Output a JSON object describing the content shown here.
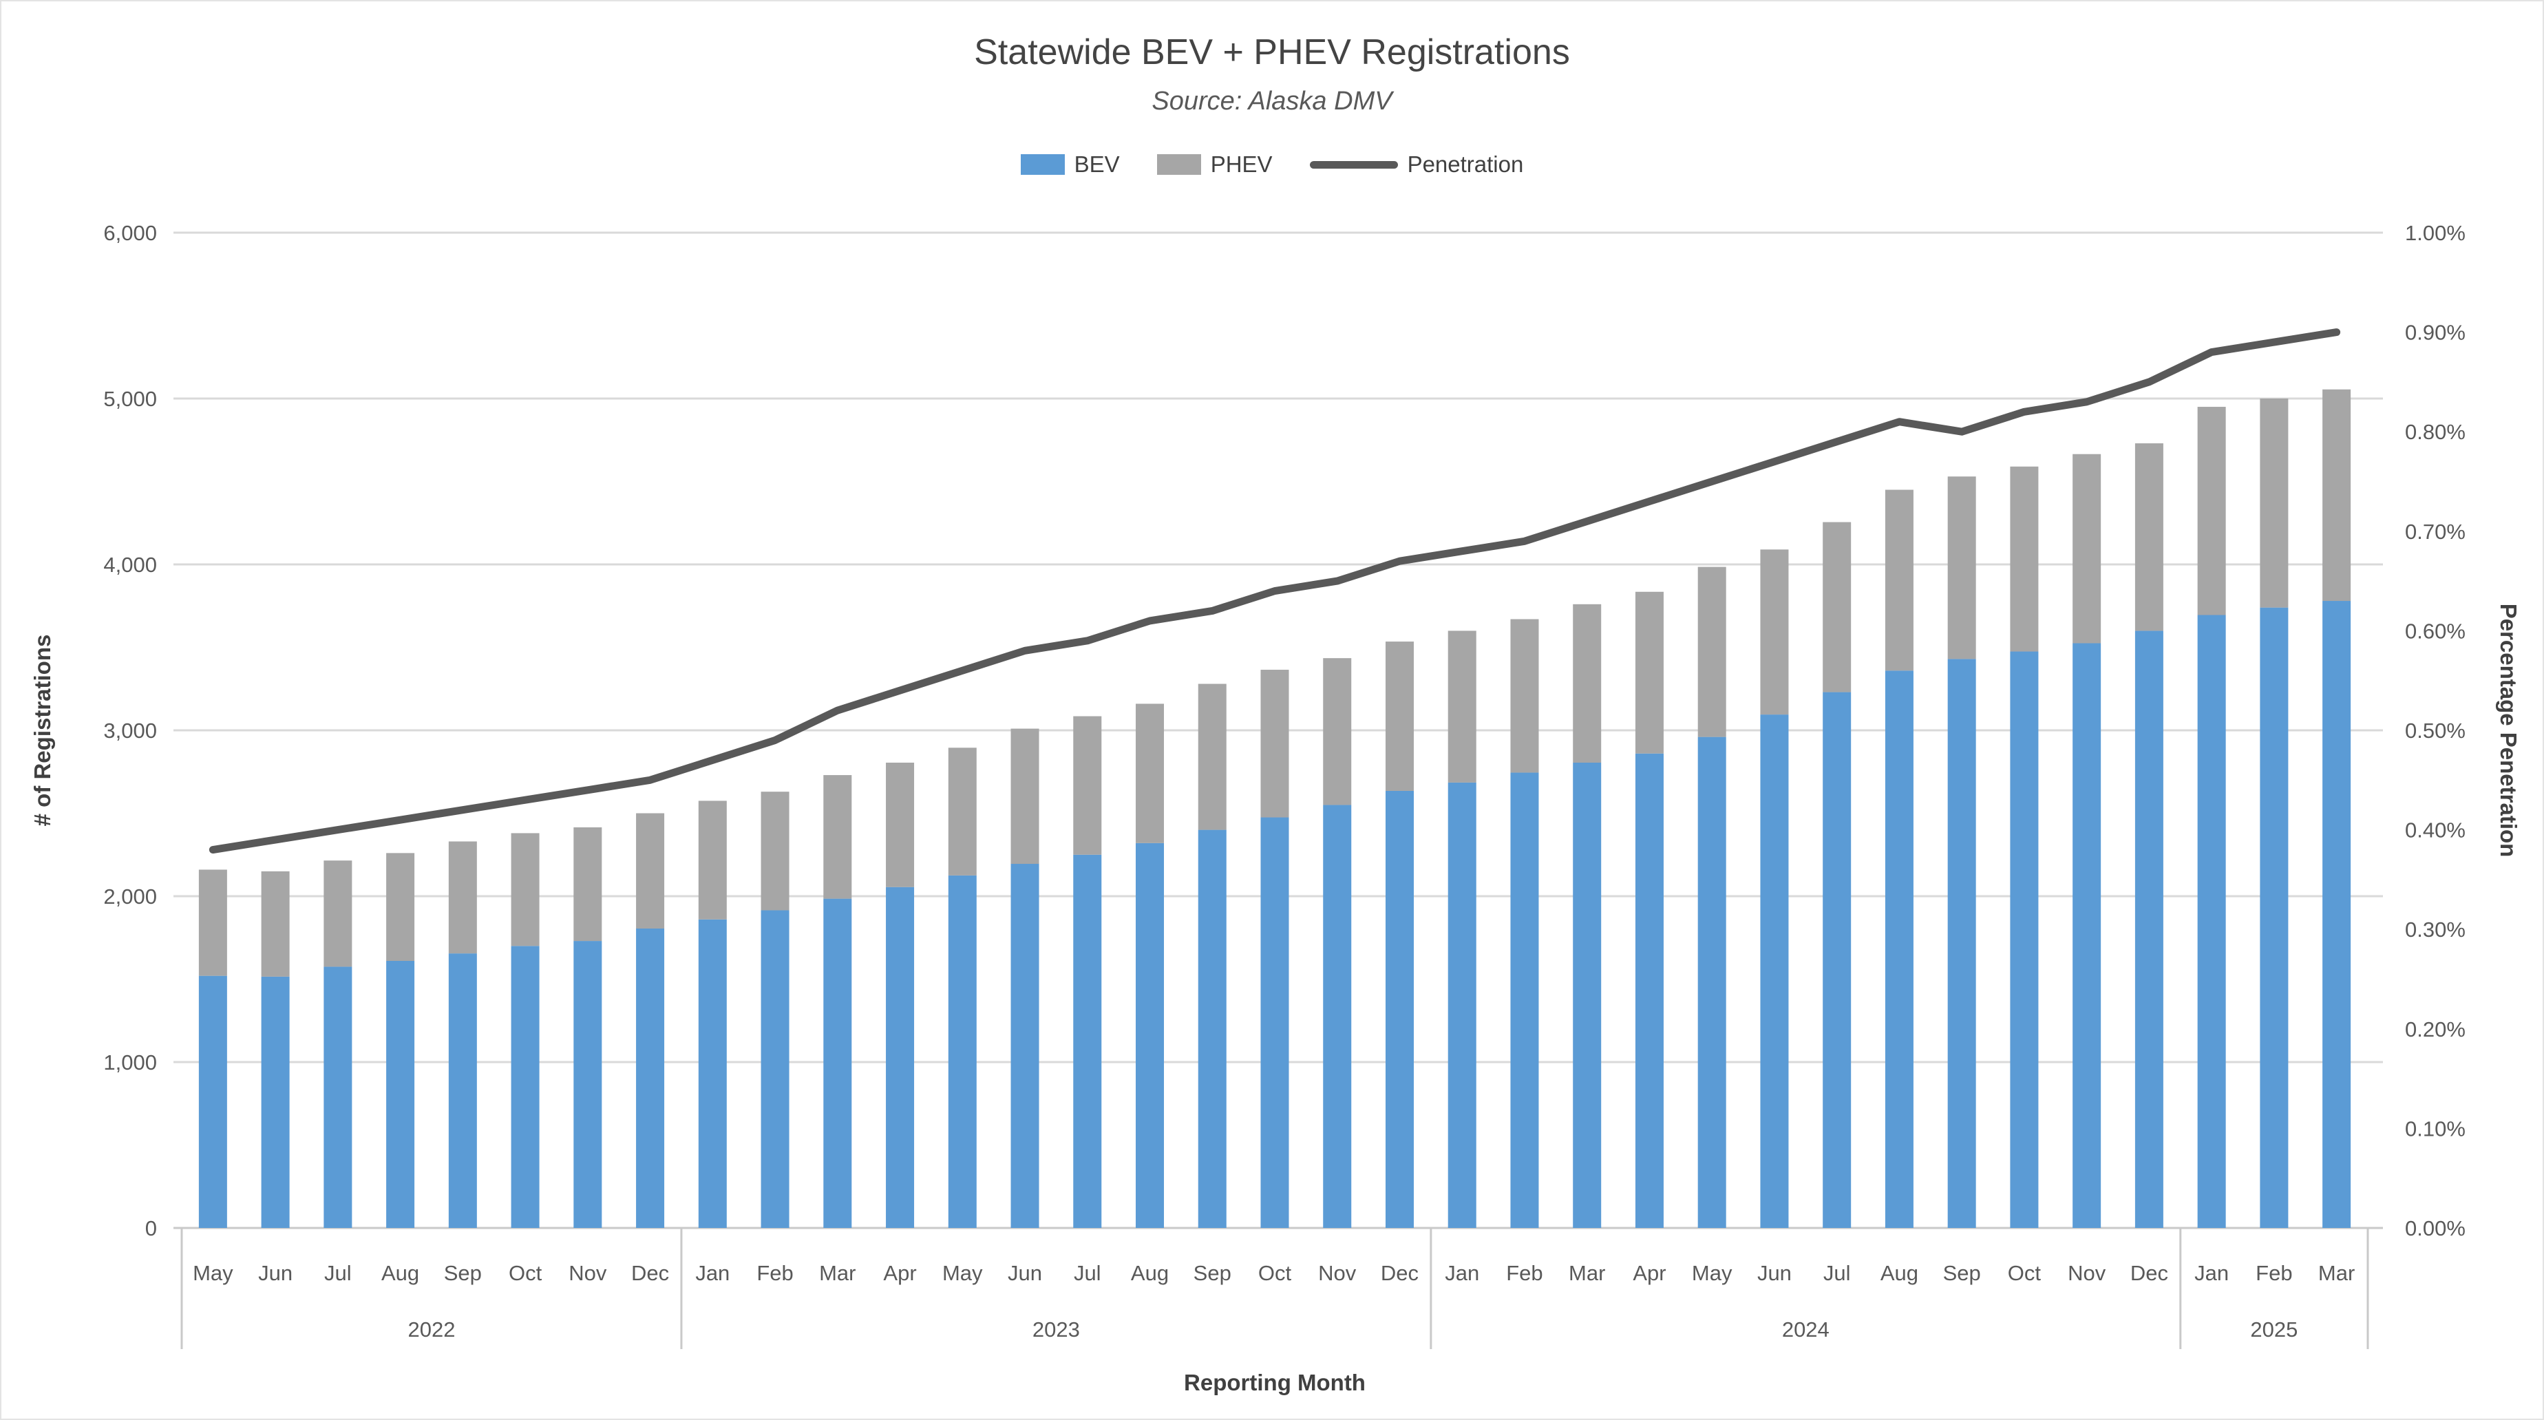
{
  "title": "Statewide BEV + PHEV Registrations",
  "subtitle": "Source: Alaska DMV",
  "legend": {
    "bev": "BEV",
    "phev": "PHEV",
    "penetration": "Penetration"
  },
  "axes": {
    "left_title": "# of Registrations",
    "right_title": "Percentage Penetration",
    "x_title": "Reporting Month",
    "ticks_left": [
      "0",
      "1,000",
      "2,000",
      "3,000",
      "4,000",
      "5,000",
      "6,000"
    ],
    "ticks_right": [
      "0.00%",
      "0.10%",
      "0.20%",
      "0.30%",
      "0.40%",
      "0.50%",
      "0.60%",
      "0.70%",
      "0.80%",
      "0.90%",
      "1.00%"
    ]
  },
  "chart_data": {
    "type": "bar",
    "subtype": "stacked-bars-with-line",
    "title": "Statewide BEV + PHEV Registrations",
    "subtitle": "Source: Alaska DMV",
    "xlabel": "Reporting Month",
    "ylabel_left": "# of Registrations",
    "ylabel_right": "Percentage Penetration",
    "ylim_left": [
      0,
      6000
    ],
    "ylim_right": [
      0,
      1.0
    ],
    "grid": true,
    "legend_position": "top",
    "categories": [
      "May",
      "Jun",
      "Jul",
      "Aug",
      "Sep",
      "Oct",
      "Nov",
      "Dec",
      "Jan",
      "Feb",
      "Mar",
      "Apr",
      "May",
      "Jun",
      "Jul",
      "Aug",
      "Sep",
      "Oct",
      "Nov",
      "Dec",
      "Jan",
      "Feb",
      "Mar",
      "Apr",
      "May",
      "Jun",
      "Jul",
      "Aug",
      "Sep",
      "Oct",
      "Nov",
      "Dec",
      "Jan",
      "Feb",
      "Mar"
    ],
    "year_groups": [
      {
        "label": "2022",
        "count": 8
      },
      {
        "label": "2023",
        "count": 12
      },
      {
        "label": "2024",
        "count": 12
      },
      {
        "label": "2025",
        "count": 3
      }
    ],
    "series": [
      {
        "name": "BEV",
        "type": "bar",
        "color": "#5B9BD5",
        "values": [
          1520,
          1515,
          1575,
          1610,
          1655,
          1700,
          1730,
          1805,
          1860,
          1915,
          1985,
          2055,
          2125,
          2195,
          2250,
          2320,
          2400,
          2475,
          2550,
          2635,
          2685,
          2745,
          2805,
          2860,
          2960,
          3095,
          3230,
          3360,
          3430,
          3475,
          3525,
          3600,
          3695,
          3740,
          3780
        ]
      },
      {
        "name": "PHEV",
        "type": "bar",
        "color": "#A6A6A6",
        "values": [
          640,
          635,
          640,
          650,
          675,
          680,
          685,
          695,
          715,
          715,
          745,
          750,
          770,
          815,
          835,
          840,
          880,
          890,
          885,
          900,
          915,
          925,
          955,
          975,
          1025,
          995,
          1025,
          1090,
          1100,
          1115,
          1140,
          1130,
          1255,
          1260,
          1275
        ]
      },
      {
        "name": "Penetration",
        "type": "line",
        "axis": "right",
        "color": "#595959",
        "values_percent": [
          0.38,
          0.39,
          0.4,
          0.41,
          0.42,
          0.43,
          0.44,
          0.45,
          0.47,
          0.49,
          0.52,
          0.54,
          0.56,
          0.58,
          0.59,
          0.61,
          0.62,
          0.64,
          0.65,
          0.67,
          0.68,
          0.69,
          0.71,
          0.73,
          0.75,
          0.77,
          0.79,
          0.81,
          0.8,
          0.82,
          0.83,
          0.85,
          0.88,
          0.89,
          0.9
        ]
      }
    ],
    "colors": {
      "gridline": "#D9D9D9",
      "axis_line": "#C9C9C9",
      "tick_text": "#595959",
      "title_text": "#444444"
    }
  }
}
